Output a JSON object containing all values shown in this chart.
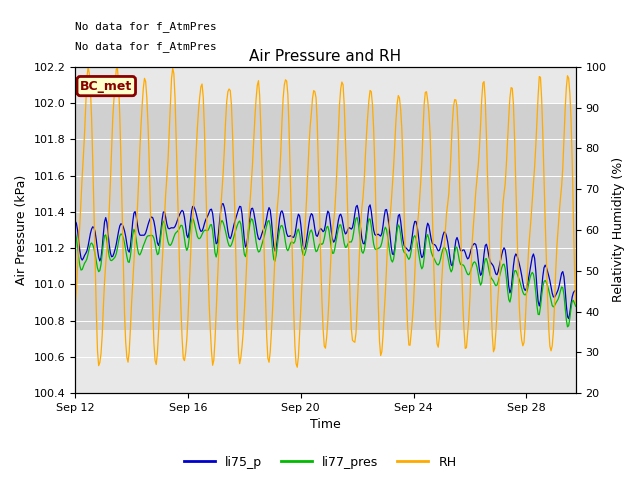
{
  "title": "Air Pressure and RH",
  "xlabel": "Time",
  "ylabel_left": "Air Pressure (kPa)",
  "ylabel_right": "Relativity Humidity (%)",
  "annotation_lines": [
    "No data for f_AtmPres",
    "No data for f_AtmPres"
  ],
  "bc_met_label": "BC_met",
  "legend_labels": [
    "li75_p",
    "li77_pres",
    "RH"
  ],
  "legend_colors": [
    "#0000cc",
    "#00bb00",
    "#ffaa00"
  ],
  "line_colors": [
    "#0000cc",
    "#00bb00",
    "#ffaa00"
  ],
  "ylim_left": [
    100.4,
    102.2
  ],
  "ylim_right": [
    20,
    100
  ],
  "yticks_left": [
    100.4,
    100.6,
    100.8,
    101.0,
    101.2,
    101.4,
    101.6,
    101.8,
    102.0,
    102.2
  ],
  "yticks_right": [
    20,
    30,
    40,
    50,
    60,
    70,
    80,
    90,
    100
  ],
  "xtick_labels": [
    "Sep 12",
    "Sep 16",
    "Sep 20",
    "Sep 24",
    "Sep 28"
  ],
  "shaded_band": [
    100.75,
    102.0
  ],
  "background_color": "#ffffff",
  "plot_bg_color": "#e8e8e8",
  "shaded_color": "#d0d0d0"
}
